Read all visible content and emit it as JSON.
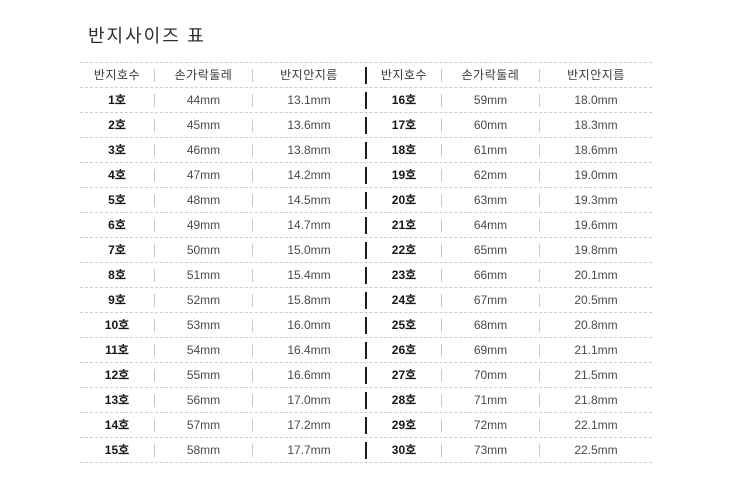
{
  "page": {
    "title": "반지사이즈 표"
  },
  "chart_data": {
    "type": "table",
    "title": "반지사이즈 표",
    "headers": [
      "반지호수",
      "손가락둘레",
      "반지안지름"
    ],
    "headers_repeated_for_both_halves": true,
    "rows_left": [
      [
        "1호",
        "44mm",
        "13.1mm"
      ],
      [
        "2호",
        "45mm",
        "13.6mm"
      ],
      [
        "3호",
        "46mm",
        "13.8mm"
      ],
      [
        "4호",
        "47mm",
        "14.2mm"
      ],
      [
        "5호",
        "48mm",
        "14.5mm"
      ],
      [
        "6호",
        "49mm",
        "14.7mm"
      ],
      [
        "7호",
        "50mm",
        "15.0mm"
      ],
      [
        "8호",
        "51mm",
        "15.4mm"
      ],
      [
        "9호",
        "52mm",
        "15.8mm"
      ],
      [
        "10호",
        "53mm",
        "16.0mm"
      ],
      [
        "11호",
        "54mm",
        "16.4mm"
      ],
      [
        "12호",
        "55mm",
        "16.6mm"
      ],
      [
        "13호",
        "56mm",
        "17.0mm"
      ],
      [
        "14호",
        "57mm",
        "17.2mm"
      ],
      [
        "15호",
        "58mm",
        "17.7mm"
      ]
    ],
    "rows_right": [
      [
        "16호",
        "59mm",
        "18.0mm"
      ],
      [
        "17호",
        "60mm",
        "18.3mm"
      ],
      [
        "18호",
        "61mm",
        "18.6mm"
      ],
      [
        "19호",
        "62mm",
        "19.0mm"
      ],
      [
        "20호",
        "63mm",
        "19.3mm"
      ],
      [
        "21호",
        "64mm",
        "19.6mm"
      ],
      [
        "22호",
        "65mm",
        "19.8mm"
      ],
      [
        "23호",
        "66mm",
        "20.1mm"
      ],
      [
        "24호",
        "67mm",
        "20.5mm"
      ],
      [
        "25호",
        "68mm",
        "20.8mm"
      ],
      [
        "26호",
        "69mm",
        "21.1mm"
      ],
      [
        "27호",
        "70mm",
        "21.5mm"
      ],
      [
        "28호",
        "71mm",
        "21.8mm"
      ],
      [
        "29호",
        "72mm",
        "22.1mm"
      ],
      [
        "30호",
        "73mm",
        "22.5mm"
      ]
    ]
  },
  "colors": {
    "text": "#4a4a4a",
    "header_text": "#3a3a3a",
    "bold_text": "#161616",
    "title_text": "#2e2e2e",
    "divider_light": "#c9c9c9",
    "divider_dark": "#1d1d1d",
    "dotted_line": "#cdcdcd",
    "background": "#ffffff"
  }
}
